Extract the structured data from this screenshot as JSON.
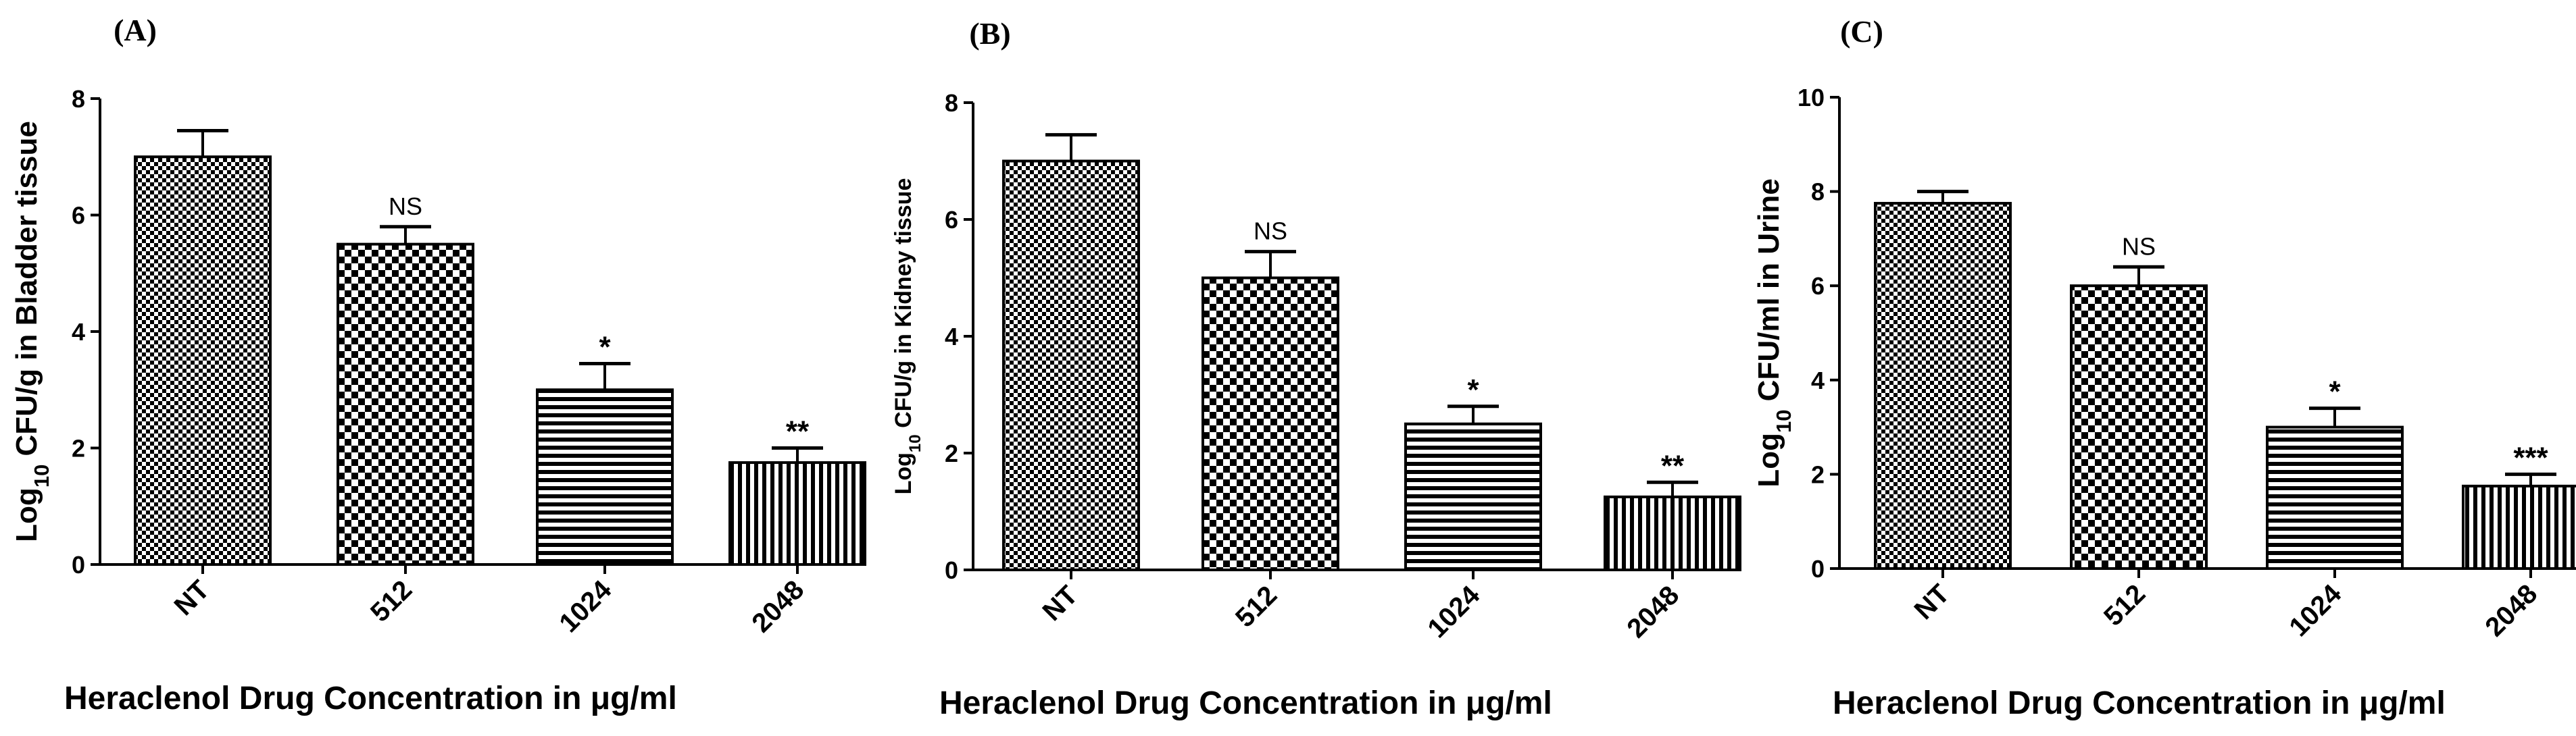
{
  "figure_xlabel_prefix": "Heraclenol Drug Concentration in ",
  "figure_xlabel_unit": "μg/ml",
  "chart_data": [
    {
      "type": "bar",
      "panel_label": "(A)",
      "ylabel_prefix": "Log",
      "ylabel_sub": "10",
      "ylabel_suffix": " CFU/g in Bladder tissue",
      "xlabel": "Heraclenol Drug Concentration in μg/ml",
      "categories": [
        "NT",
        "512",
        "1024",
        "2048"
      ],
      "values": [
        7.0,
        5.5,
        3.0,
        1.75
      ],
      "errors": [
        0.45,
        0.3,
        0.45,
        0.25
      ],
      "significance": [
        "",
        "NS",
        "*",
        "**"
      ],
      "patterns": [
        "dense-check",
        "check",
        "horizontal",
        "vertical"
      ],
      "ylim": [
        0,
        8
      ],
      "yticks": [
        0,
        2,
        4,
        6,
        8
      ]
    },
    {
      "type": "bar",
      "panel_label": "(B)",
      "ylabel_prefix": "Log",
      "ylabel_sub": "10",
      "ylabel_suffix": " CFU/g in Kidney tissue",
      "xlabel": "Heraclenol Drug Concentration in μg/ml",
      "categories": [
        "NT",
        "512",
        "1024",
        "2048"
      ],
      "values": [
        7.0,
        5.0,
        2.5,
        1.25
      ],
      "errors": [
        0.45,
        0.45,
        0.3,
        0.25
      ],
      "significance": [
        "",
        "NS",
        "*",
        "**"
      ],
      "patterns": [
        "dense-check",
        "check",
        "horizontal",
        "vertical"
      ],
      "ylim": [
        0,
        8
      ],
      "yticks": [
        0,
        2,
        4,
        6,
        8
      ]
    },
    {
      "type": "bar",
      "panel_label": "(C)",
      "ylabel_prefix": "Log",
      "ylabel_sub": "10",
      "ylabel_suffix": " CFU/ml in Urine",
      "xlabel": "Heraclenol Drug Concentration in μg/ml",
      "categories": [
        "NT",
        "512",
        "1024",
        "2048"
      ],
      "values": [
        7.75,
        6.0,
        3.0,
        1.75
      ],
      "errors": [
        0.25,
        0.4,
        0.4,
        0.25
      ],
      "significance": [
        "",
        "NS",
        "*",
        "***"
      ],
      "patterns": [
        "dense-check",
        "check",
        "horizontal",
        "vertical"
      ],
      "ylim": [
        0,
        10
      ],
      "yticks": [
        0,
        2,
        4,
        6,
        8,
        10
      ]
    }
  ]
}
